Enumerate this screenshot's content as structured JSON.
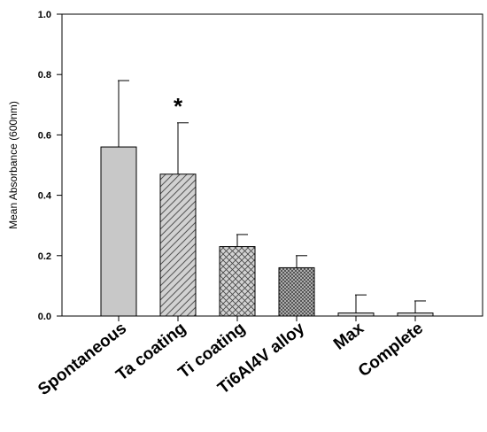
{
  "chart_data": {
    "type": "bar",
    "ylabel": "Mean Absorbance (600nm)",
    "xlabel": "",
    "ylim": [
      0,
      1.0
    ],
    "yticks": [
      "0.0",
      "0.2",
      "0.4",
      "0.6",
      "0.8",
      "1.0"
    ],
    "categories": [
      "Spontaneous",
      "Ta coating",
      "Ti coating",
      "Ti6Al4V alloy",
      "Max",
      "Complete"
    ],
    "values": [
      0.56,
      0.47,
      0.23,
      0.16,
      0.01,
      0.01
    ],
    "errors": [
      0.22,
      0.17,
      0.04,
      0.04,
      0.06,
      0.04
    ],
    "fill_patterns": [
      "solid",
      "diagonal",
      "crosshatch",
      "dense-crosshatch",
      "solid-light",
      "solid-light"
    ],
    "annotation": {
      "text": "*",
      "category": "Ta coating"
    },
    "grid": false,
    "colors": {
      "bar_fill": "#c8c8c8",
      "bar_fill_light": "#d9d9d9",
      "stroke": "#000000"
    }
  }
}
